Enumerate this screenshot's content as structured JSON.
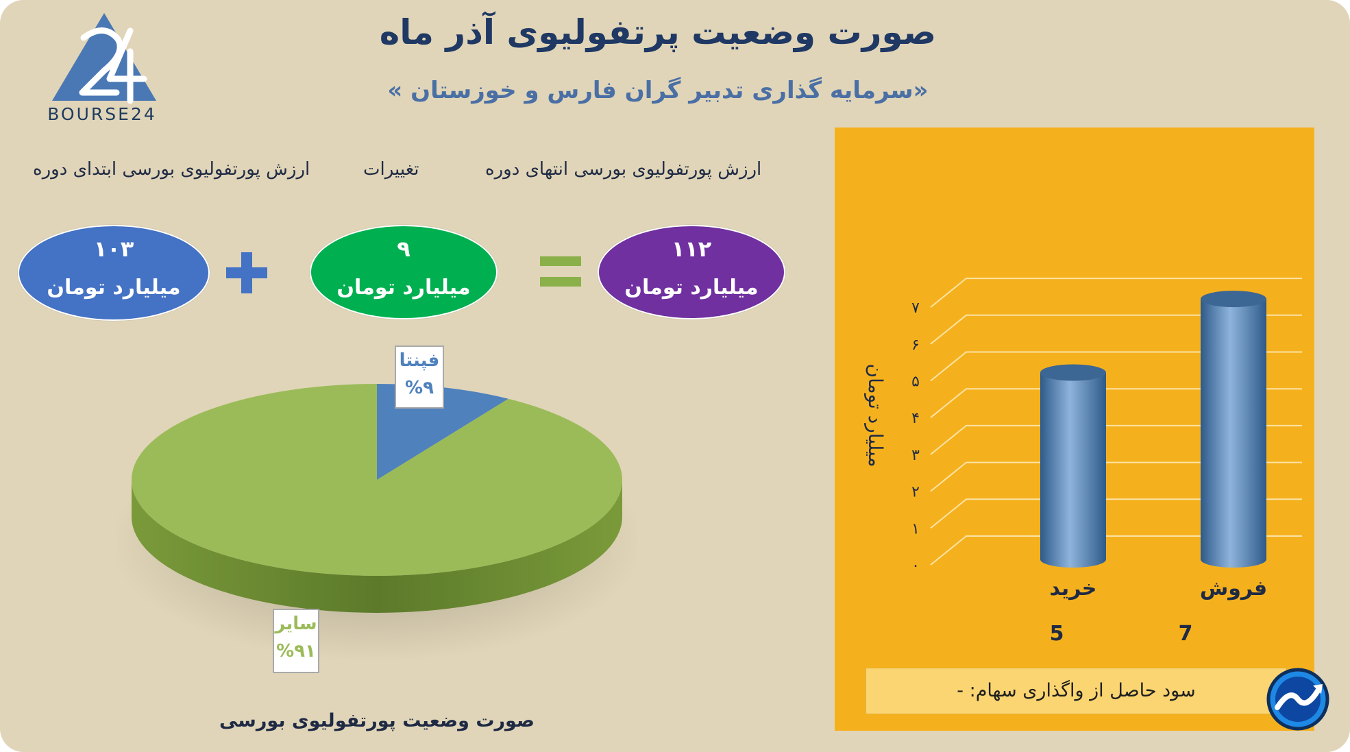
{
  "header": {
    "title": "صورت وضعیت پرتفولیوی آذر ماه",
    "subtitle": "«سرمایه گذاری تدبیر گران فارس و خوزستان »"
  },
  "logo": {
    "text": "BOURSE24"
  },
  "equation": {
    "end_label": "ارزش پورتفولیوی بورسی انتهای دوره",
    "change_label": "تغییرات",
    "start_label": "ارزش پورتفولیوی بورسی ابتدای دوره",
    "end_value": "۱۱۲",
    "change_value": "۹",
    "start_value": "۱۰۳",
    "unit": "میلیارد تومان",
    "end_color": "#7030a0",
    "change_color": "#00b050",
    "start_color": "#4472c4",
    "operator_color_plus": "#4472c4",
    "operator_color_equals": "#8ab04a"
  },
  "chart_data": [
    {
      "type": "pie",
      "caption": "صورت وضعیت پورتفولیوی بورسی",
      "slices": [
        {
          "label": "فپنتا",
          "value": 9,
          "label_text": "%۹",
          "color": "#4f81bd"
        },
        {
          "label": "سایر",
          "value": 91,
          "label_text": "%۹۱",
          "color": "#9bbb59"
        }
      ]
    },
    {
      "type": "bar",
      "ylabel": "میلیارد تومان",
      "categories": [
        "فروش",
        "خرید"
      ],
      "values": [
        7,
        5
      ],
      "value_labels": [
        "7",
        "5"
      ],
      "ylim": [
        0,
        7
      ],
      "yticks": [
        "۰",
        "۱",
        "۲",
        "۳",
        "۴",
        "۵",
        "۶",
        "۷"
      ],
      "grid": true,
      "bar_color": "#4f81bd",
      "background": "#f5b11d"
    }
  ],
  "footer": {
    "profit_text": "سود حاصل از واگذاری سهام: -"
  }
}
